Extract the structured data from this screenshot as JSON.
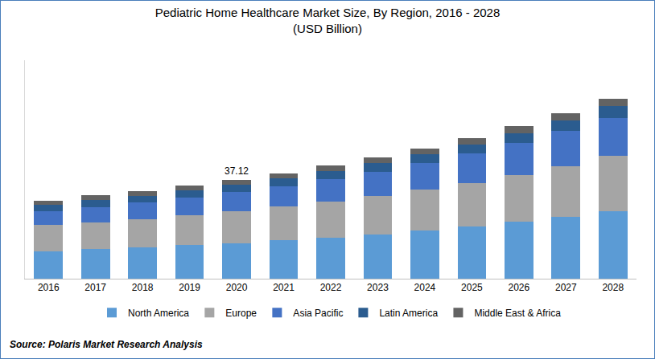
{
  "chart_data": {
    "type": "bar",
    "stacked": true,
    "title": "Pediatric Home Healthcare Market Size, By Region, 2016 - 2028",
    "subtitle": "(USD Billion)",
    "source": "Source: Polaris Market Research Analysis",
    "categories": [
      "2016",
      "2017",
      "2018",
      "2019",
      "2020",
      "2021",
      "2022",
      "2023",
      "2024",
      "2025",
      "2026",
      "2027",
      "2028"
    ],
    "series": [
      {
        "name": "North America",
        "color": "#5b9bd5",
        "values": [
          10.26,
          11.17,
          11.77,
          12.68,
          13.28,
          14.49,
          15.39,
          16.6,
          18.11,
          19.62,
          21.43,
          23.24,
          25.35
        ]
      },
      {
        "name": "Europe",
        "color": "#a5a5a5",
        "values": [
          9.96,
          9.96,
          10.56,
          11.17,
          12.07,
          12.68,
          13.58,
          14.49,
          15.39,
          16.3,
          17.5,
          19.01,
          20.82
        ]
      },
      {
        "name": "Asia Pacific",
        "color": "#4472c4",
        "values": [
          5.13,
          5.73,
          6.34,
          6.64,
          7.24,
          7.55,
          8.45,
          9.05,
          9.96,
          11.17,
          12.07,
          13.28,
          14.18
        ]
      },
      {
        "name": "Latin America",
        "color": "#2b5c8f",
        "values": [
          2.41,
          2.72,
          2.41,
          2.72,
          2.72,
          3.02,
          3.02,
          3.32,
          3.32,
          3.32,
          3.62,
          3.92,
          4.53
        ]
      },
      {
        "name": "Middle East & Africa",
        "color": "#636363",
        "values": [
          1.51,
          1.81,
          1.81,
          1.81,
          1.81,
          1.81,
          2.11,
          2.11,
          2.11,
          2.41,
          2.72,
          2.72,
          2.72
        ]
      }
    ],
    "annotations": [
      {
        "category": "2020",
        "text": "37.12",
        "value": 37.12
      }
    ],
    "ylim": [
      0,
      82
    ],
    "grid": false,
    "legend": "bottom",
    "tick_labels": "x"
  }
}
